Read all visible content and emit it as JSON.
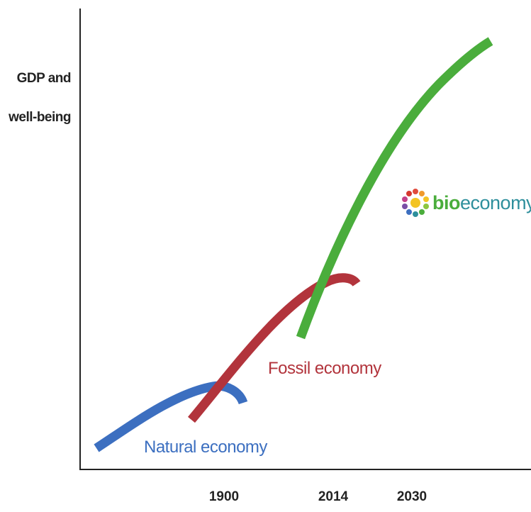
{
  "colors": {
    "axis": "#222222",
    "natural": "#3c6fc0",
    "fossil": "#b2343c",
    "bio": "#4aad3c",
    "logo_teal": "#2e8f9c",
    "background": "#ffffff"
  },
  "y_axis": {
    "label_line1": "GDP and",
    "label_line2": "well-being"
  },
  "x_axis": {
    "ticks": [
      "1900",
      "2014",
      "2030"
    ]
  },
  "curves": {
    "natural": {
      "label": "Natural economy"
    },
    "fossil": {
      "label": "Fossil economy"
    },
    "bio": {
      "label": "bioeconomy"
    }
  },
  "logo": {
    "icon": "bioeconomy-flower-icon",
    "text_bold": "bio",
    "text_rest": "economy",
    "superscript": "+"
  }
}
